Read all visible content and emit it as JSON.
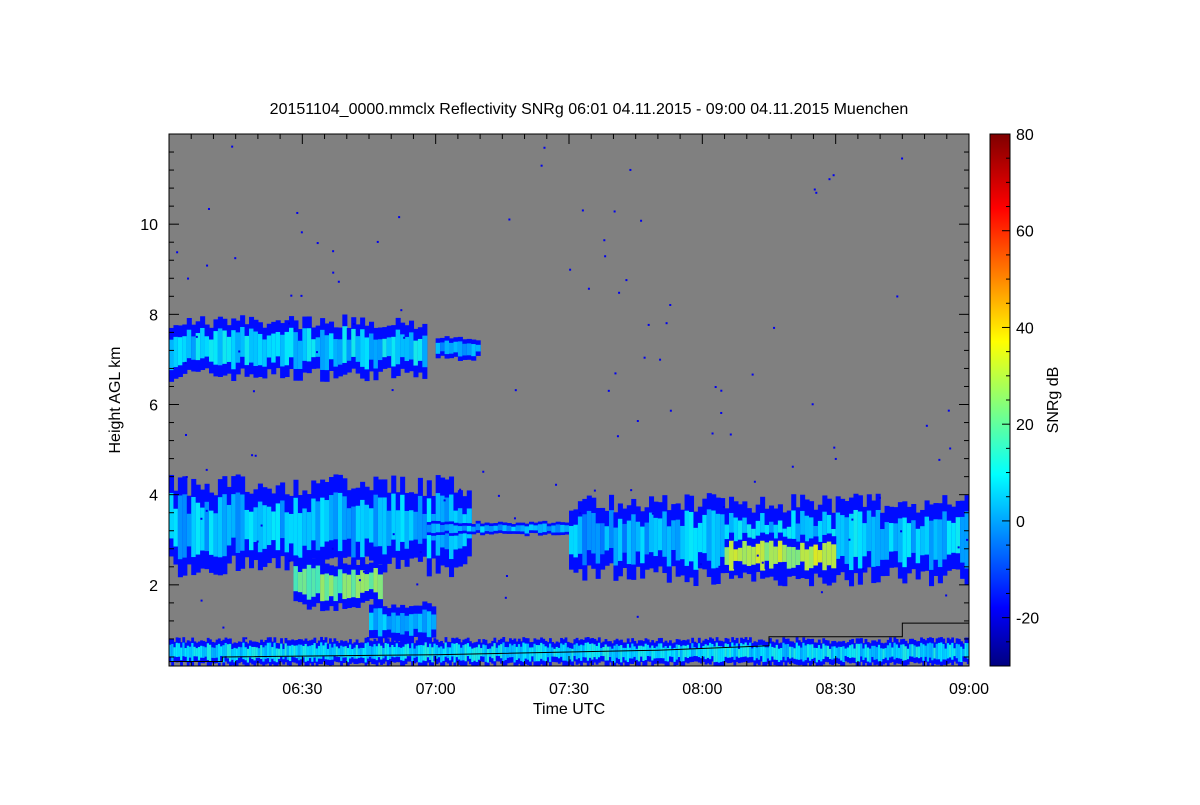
{
  "chart_data": {
    "type": "heatmap",
    "title": "20151104_0000.mmclx Reflectivity SNRg   06:01 04.11.2015 - 09:00 04.11.2015 Muenchen",
    "xlabel": "Time UTC",
    "ylabel": "Height AGL km",
    "xlim_minutes_after_0600": [
      0,
      180
    ],
    "ylim": [
      0.2,
      12.0
    ],
    "xticks": [
      {
        "label": "06:30",
        "min": 30
      },
      {
        "label": "07:00",
        "min": 60
      },
      {
        "label": "07:30",
        "min": 90
      },
      {
        "label": "08:00",
        "min": 120
      },
      {
        "label": "08:30",
        "min": 150
      },
      {
        "label": "09:00",
        "min": 180
      }
    ],
    "yticks": [
      {
        "label": "2",
        "v": 2
      },
      {
        "label": "4",
        "v": 4
      },
      {
        "label": "6",
        "v": 6
      },
      {
        "label": "8",
        "v": 8
      },
      {
        "label": "10",
        "v": 10
      }
    ],
    "colorbar": {
      "label": "SNRg dB",
      "range": [
        -30,
        80
      ],
      "colormap": "jet",
      "ticks": [
        {
          "label": "80",
          "v": 80
        },
        {
          "label": "60",
          "v": 60
        },
        {
          "label": "40",
          "v": 40
        },
        {
          "label": "20",
          "v": 20
        },
        {
          "label": "0",
          "v": 0
        },
        {
          "label": "-20",
          "v": -20
        }
      ]
    },
    "background_color": "#808080",
    "features": [
      {
        "name": "upper-cirrus",
        "t0": 0,
        "t1": 58,
        "bottom": 6.6,
        "top": 7.9,
        "snr": 8
      },
      {
        "name": "upper-cirrus-patch",
        "t0": 60,
        "t1": 70,
        "bottom": 7.0,
        "top": 7.5,
        "snr": 3
      },
      {
        "name": "lower-layer-west",
        "t0": 0,
        "t1": 68,
        "bottom": 2.3,
        "top": 4.3,
        "snr": 6
      },
      {
        "name": "fallstreak-core",
        "t0": 28,
        "t1": 48,
        "bottom": 1.5,
        "top": 2.6,
        "snr": 25
      },
      {
        "name": "fallstreak-tail",
        "t0": 45,
        "t1": 60,
        "bottom": 0.7,
        "top": 1.6,
        "snr": 5
      },
      {
        "name": "thin-band",
        "t0": 58,
        "t1": 90,
        "bottom": 3.1,
        "top": 3.4,
        "snr": 5
      },
      {
        "name": "mid-streaks",
        "t0": 90,
        "t1": 108,
        "bottom": 2.2,
        "top": 3.9,
        "snr": 4
      },
      {
        "name": "lower-layer-east",
        "t0": 108,
        "t1": 180,
        "bottom": 2.1,
        "top": 3.9,
        "snr": 8
      },
      {
        "name": "east-core",
        "t0": 125,
        "t1": 150,
        "bottom": 2.2,
        "top": 3.1,
        "snr": 32
      },
      {
        "name": "ground-clutter",
        "t0": 0,
        "t1": 180,
        "bottom": 0.2,
        "top": 0.8,
        "snr": 10
      }
    ]
  }
}
